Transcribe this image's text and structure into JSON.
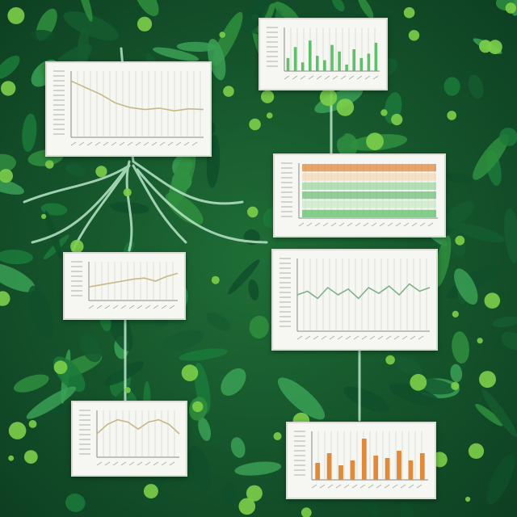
{
  "scene": {
    "colors": {
      "foliage_dark": "#0f4f2a",
      "foliage_mid": "#2f8f3e",
      "foliage_light": "#7ccf4a",
      "root": "#b9e6c9",
      "panel_bg": "#f6f7f2",
      "gridline": "#c9cfc3",
      "line_series": "#c7b785",
      "bar_green": "#5fbf6a",
      "bar_orange": "#e08a3c"
    }
  },
  "chart_data": [
    {
      "type": "line",
      "series": [
        {
          "values": [
            0.85,
            0.75,
            0.65,
            0.52,
            0.45,
            0.42,
            0.44,
            0.4,
            0.43,
            0.42
          ]
        }
      ]
    },
    {
      "type": "bar",
      "series": [
        {
          "values": [
            0.3,
            0.55,
            0.2,
            0.7,
            0.35,
            0.25,
            0.6,
            0.45,
            0.15,
            0.5,
            0.3,
            0.4,
            0.65
          ]
        }
      ]
    },
    {
      "type": "heatmap",
      "rows": 6
    },
    {
      "type": "line",
      "series": [
        {
          "values": [
            0.35,
            0.4,
            0.45,
            0.5,
            0.55,
            0.58,
            0.5,
            0.62,
            0.7
          ]
        }
      ]
    },
    {
      "type": "line",
      "series": [
        {
          "values": [
            0.5,
            0.55,
            0.45,
            0.6,
            0.5,
            0.58,
            0.45,
            0.6,
            0.52,
            0.62,
            0.5,
            0.65,
            0.55,
            0.6
          ]
        }
      ]
    },
    {
      "type": "line",
      "series": [
        {
          "values": [
            0.5,
            0.7,
            0.8,
            0.75,
            0.6,
            0.75,
            0.8,
            0.7,
            0.5
          ]
        }
      ]
    },
    {
      "type": "bar",
      "series": [
        {
          "values": [
            0.35,
            0.55,
            0.3,
            0.4,
            0.85,
            0.5,
            0.45,
            0.6,
            0.4,
            0.55
          ]
        }
      ]
    }
  ]
}
